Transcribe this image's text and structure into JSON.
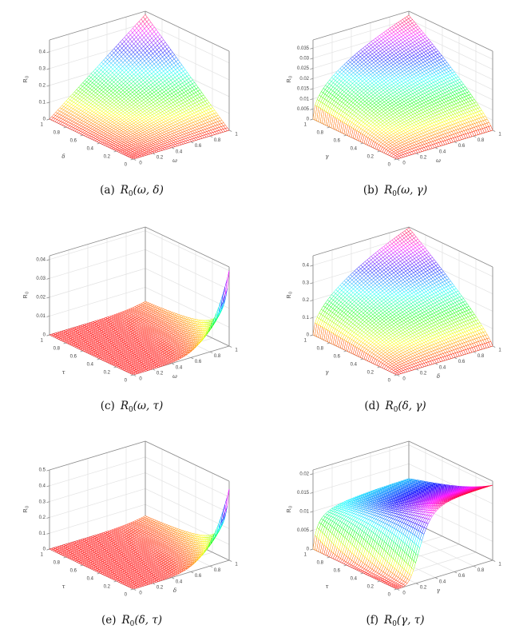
{
  "figure": {
    "background": "#ffffff",
    "colormap": "hsv",
    "box_color": "#8c8c8c",
    "grid_color": "#e2e2e2",
    "tick_label_color": "#3f3f3f",
    "axis_label_color": "#3f3f3f",
    "caption_color": "#111111",
    "mesh_face_color": "#ffffff"
  },
  "chart_data": [
    {
      "id": "a",
      "type": "surface3d",
      "caption": {
        "index": "(a)",
        "func": "R",
        "sub": "0",
        "args": "(ω, δ)"
      },
      "xlabel": "ω",
      "ylabel": "δ",
      "zlabel": {
        "func": "R",
        "sub": "0"
      },
      "xticks": [
        0,
        0.2,
        0.4,
        0.6,
        0.8,
        1
      ],
      "yticks": [
        0,
        0.2,
        0.4,
        0.6,
        0.8,
        1
      ],
      "zticks": [
        0,
        0.1,
        0.2,
        0.3,
        0.4
      ],
      "xlim": [
        0,
        1
      ],
      "ylim": [
        0,
        1
      ],
      "zlim": [
        0,
        0.47
      ],
      "peak_z": 0.45,
      "grid": true,
      "legend": false,
      "surface_formula": "0.45*x*y",
      "mesh_n": 46
    },
    {
      "id": "b",
      "type": "surface3d",
      "caption": {
        "index": "(b)",
        "func": "R",
        "sub": "0",
        "args": "(ω, γ)"
      },
      "xlabel": "ω",
      "ylabel": "γ",
      "zlabel": {
        "func": "R",
        "sub": "0"
      },
      "xticks": [
        0,
        0.2,
        0.4,
        0.6,
        0.8,
        1
      ],
      "yticks": [
        0,
        0.2,
        0.4,
        0.6,
        0.8,
        1
      ],
      "zticks": [
        0,
        0.005,
        0.01,
        0.015,
        0.02,
        0.025,
        0.03,
        0.035
      ],
      "xlim": [
        0,
        1
      ],
      "ylim": [
        0,
        1
      ],
      "zlim": [
        0,
        0.039
      ],
      "peak_z": 0.037,
      "grid": true,
      "legend": false,
      "surface_formula": "0.037*Math.pow(x,0.45)*Math.pow(y,0.8)",
      "mesh_n": 46
    },
    {
      "id": "c",
      "type": "surface3d",
      "caption": {
        "index": "(c)",
        "func": "R",
        "sub": "0",
        "args": "(ω, τ)"
      },
      "xlabel": "ω",
      "ylabel": "τ",
      "zlabel": {
        "func": "R",
        "sub": "0"
      },
      "xticks": [
        0,
        0.2,
        0.4,
        0.6,
        0.8,
        1
      ],
      "yticks": [
        0,
        0.2,
        0.4,
        0.6,
        0.8,
        1
      ],
      "zticks": [
        0,
        0.01,
        0.02,
        0.03,
        0.04
      ],
      "xlim": [
        0,
        1
      ],
      "ylim": [
        0,
        1
      ],
      "zlim": [
        0,
        0.042
      ],
      "peak_z": 0.04,
      "grid": true,
      "legend": false,
      "surface_formula": "0.04*Math.pow(x,5)/(1+15*y)",
      "mesh_n": 46
    },
    {
      "id": "d",
      "type": "surface3d",
      "caption": {
        "index": "(d)",
        "func": "R",
        "sub": "0",
        "args": "(δ, γ)"
      },
      "xlabel": "δ",
      "ylabel": "γ",
      "zlabel": {
        "func": "R",
        "sub": "0"
      },
      "xticks": [
        0,
        0.2,
        0.4,
        0.6,
        0.8,
        1
      ],
      "yticks": [
        0,
        0.2,
        0.4,
        0.6,
        0.8,
        1
      ],
      "zticks": [
        0,
        0.1,
        0.2,
        0.3,
        0.4
      ],
      "xlim": [
        0,
        1
      ],
      "ylim": [
        0,
        1
      ],
      "zlim": [
        0,
        0.455
      ],
      "peak_z": 0.45,
      "grid": true,
      "legend": false,
      "surface_formula": "0.45*Math.pow(x,0.5)*Math.pow(y,0.8)",
      "mesh_n": 46
    },
    {
      "id": "e",
      "type": "surface3d",
      "caption": {
        "index": "(e)",
        "func": "R",
        "sub": "0",
        "args": "(δ, τ)"
      },
      "xlabel": "δ",
      "ylabel": "τ",
      "zlabel": {
        "func": "R",
        "sub": "0"
      },
      "xticks": [
        0,
        0.2,
        0.4,
        0.6,
        0.8,
        1
      ],
      "yticks": [
        0,
        0.2,
        0.4,
        0.6,
        0.8,
        1
      ],
      "zticks": [
        0,
        0.1,
        0.2,
        0.3,
        0.4,
        0.5
      ],
      "xlim": [
        0,
        1
      ],
      "ylim": [
        0,
        1
      ],
      "zlim": [
        0,
        0.5
      ],
      "peak_z": 0.45,
      "grid": true,
      "legend": false,
      "surface_formula": "0.45*Math.pow(x,5)/(1+15*y)",
      "mesh_n": 46
    },
    {
      "id": "f",
      "type": "surface3d",
      "caption": {
        "index": "(f)",
        "func": "R",
        "sub": "0",
        "args": "(γ, τ)"
      },
      "xlabel": "γ",
      "ylabel": "τ",
      "zlabel": {
        "func": "R",
        "sub": "0"
      },
      "xticks": [
        0,
        0.2,
        0.4,
        0.6,
        0.8,
        1
      ],
      "yticks": [
        0,
        0.2,
        0.4,
        0.6,
        0.8,
        1
      ],
      "zticks": [
        0,
        0.005,
        0.01,
        0.015,
        0.02
      ],
      "xlim": [
        0,
        1
      ],
      "ylim": [
        0,
        1
      ],
      "zlim": [
        0,
        0.021
      ],
      "peak_z": 0.02,
      "grid": true,
      "legend": false,
      "surface_formula": "0.02*Math.pow(x,4-3*y)/(Math.pow(x,4-3*y)+Math.pow(0.25-0.2*y,4-3*y))/(1+0.72*y)",
      "mesh_n": 46
    }
  ]
}
